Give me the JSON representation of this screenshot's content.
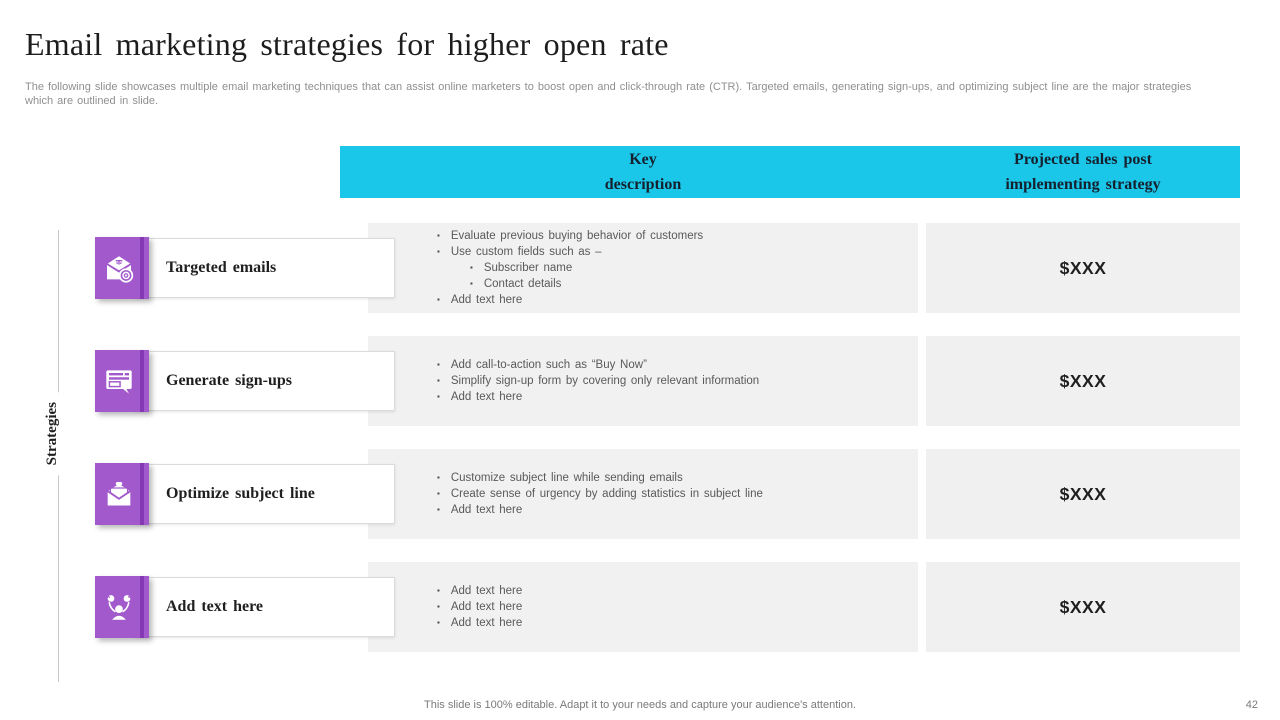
{
  "slide": {
    "title": "Email marketing strategies for higher open rate",
    "subtitle": "The following slide showcases multiple email marketing techniques that can assist online marketers to boost open and click-through rate (CTR). Targeted emails, generating sign-ups, and optimizing subject line are the major strategies which are outlined in slide.",
    "axis_label": "Strategies",
    "footer": "This slide is 100% editable. Adapt it to your needs and capture your audience's attention.",
    "page_number": "42"
  },
  "colors": {
    "accent_cyan": "#1BC7E9",
    "accent_purple": "#A159CB",
    "accent_purple_dark": "#8438B4",
    "description_cell_bg": "#F1F1F2",
    "value_cell_bg": "#F0F0F1",
    "title_text": "#1D1D1D",
    "body_text": "#595959",
    "muted_text": "#8F8F8F"
  },
  "table": {
    "headers": [
      {
        "label": "Key\ndescription"
      },
      {
        "label": "Projected sales post\nimplementing strategy"
      }
    ],
    "rows": [
      {
        "icon": "targeted-email-icon",
        "icon_id": "targeted-emails",
        "label": "Targeted emails",
        "bullets": [
          {
            "level": 1,
            "text": "Evaluate previous buying behavior of customers"
          },
          {
            "level": 1,
            "text": "Use custom fields such as –"
          },
          {
            "level": 2,
            "text": "Subscriber name"
          },
          {
            "level": 2,
            "text": "Contact details"
          },
          {
            "level": 1,
            "text": "Add text here"
          }
        ],
        "value": "$XXX"
      },
      {
        "icon": "signup-form-icon",
        "icon_id": "signup-form",
        "label": "Generate sign-ups",
        "bullets": [
          {
            "level": 1,
            "text": "Add call-to-action such as “Buy Now”"
          },
          {
            "level": 1,
            "text": "Simplify sign-up form by covering only relevant information"
          },
          {
            "level": 1,
            "text": "Add text here"
          }
        ],
        "value": "$XXX"
      },
      {
        "icon": "open-envelope-icon",
        "icon_id": "open-envelope",
        "label": "Optimize subject line",
        "bullets": [
          {
            "level": 1,
            "text": "Customize subject line while sending emails"
          },
          {
            "level": 1,
            "text": "Create sense of urgency by adding statistics in subject line"
          },
          {
            "level": 1,
            "text": "Add text here"
          }
        ],
        "value": "$XXX"
      },
      {
        "icon": "person-ideas-icon",
        "icon_id": "person-ideas",
        "label": "Add text here",
        "bullets": [
          {
            "level": 1,
            "text": "Add text here"
          },
          {
            "level": 1,
            "text": "Add text here"
          },
          {
            "level": 1,
            "text": "Add text here"
          }
        ],
        "value": "$XXX"
      }
    ]
  }
}
